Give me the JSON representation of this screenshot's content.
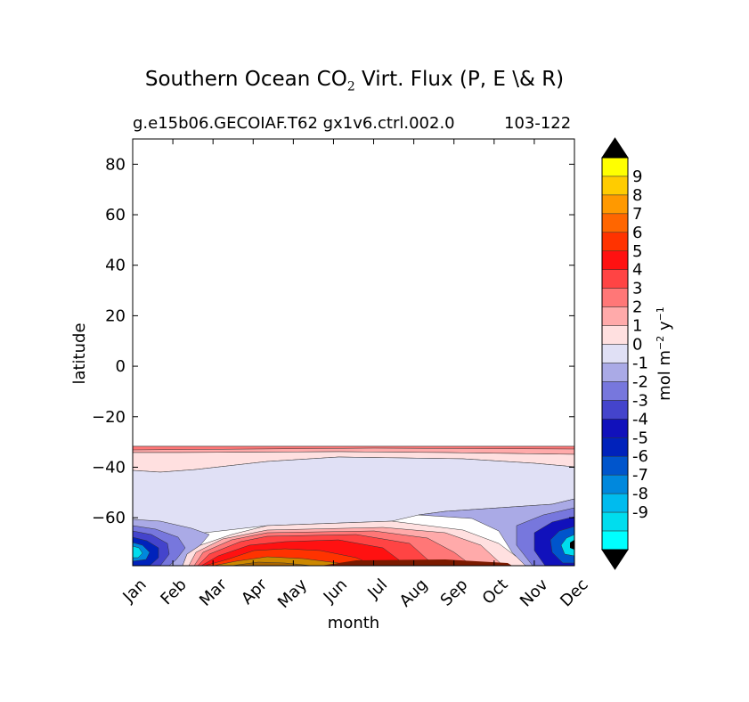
{
  "chart_data": {
    "type": "contour",
    "title": {
      "main": "Southern Ocean CO",
      "sub": "2",
      "rest": " Virt. Flux (P, E \\& R)"
    },
    "subtitle_left": "g.e15b06.GECOIAF.T62 gx1v6.ctrl.002.0",
    "subtitle_right": "103-122",
    "xlabel": "month",
    "ylabel": "latitude",
    "x_ticks": [
      "Jan",
      "Feb",
      "Mar",
      "Apr",
      "May",
      "Jun",
      "Jul",
      "Aug",
      "Sep",
      "Oct",
      "Nov",
      "Dec"
    ],
    "y_ticks": [
      80,
      60,
      40,
      20,
      0,
      -20,
      -40,
      -60
    ],
    "y_tick_labels": [
      "80",
      "60",
      "40",
      "20",
      "0",
      "−20",
      "−40",
      "−60"
    ],
    "ylim": [
      -79,
      90
    ],
    "colorbar": {
      "label_main": "mol m",
      "label_exp1": "−2",
      "label_mid": " y",
      "label_exp2": "−1",
      "ticks": [
        "9",
        "8",
        "7",
        "6",
        "5",
        "4",
        "3",
        "2",
        "1",
        "0",
        "-1",
        "-2",
        "-3",
        "-4",
        "-5",
        "-6",
        "-7",
        "-8",
        "-9"
      ],
      "colors": [
        "#ffff00",
        "#ffcc00",
        "#ff9900",
        "#ff6600",
        "#ff3300",
        "#ff1111",
        "#ff4444",
        "#ff7777",
        "#ffaaaa",
        "#ffe0e0",
        "#e0e0f5",
        "#aaaae6",
        "#7777dd",
        "#4444cc",
        "#1111bb",
        "#0022bb",
        "#0055cc",
        "#0088dd",
        "#00bbee",
        "#00ddee",
        "#00ffff"
      ],
      "extend_color": "#000000"
    }
  }
}
